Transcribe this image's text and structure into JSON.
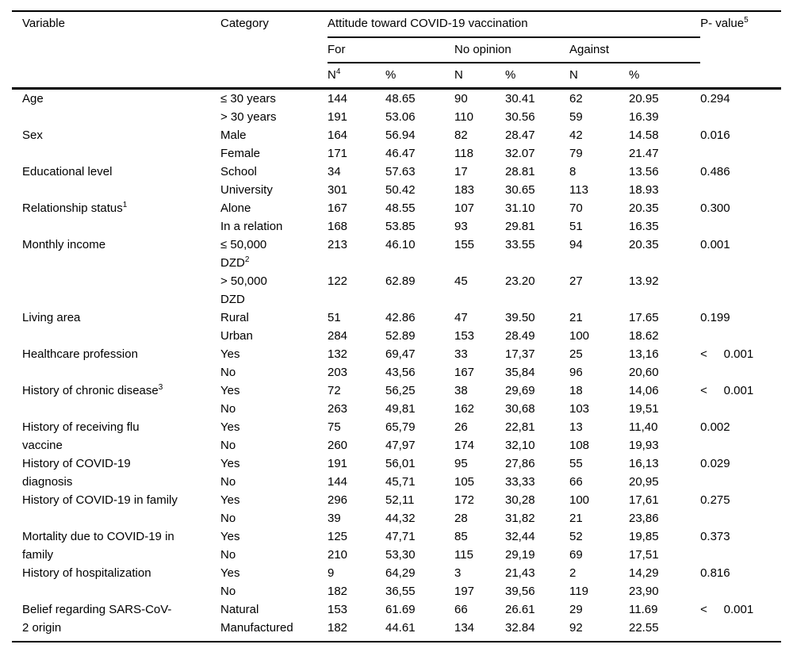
{
  "table": {
    "header": {
      "variable": "Variable",
      "category": "Category",
      "attitude_span": "Attitude toward COVID-19 vaccination",
      "pvalue": {
        "text": "P- value",
        "sup": "5"
      },
      "for_label": "For",
      "no_opinion_label": "No opinion",
      "against_label": "Against",
      "n_for": {
        "text": "N",
        "sup": "4"
      },
      "n_label": "N",
      "pct_label": "%"
    },
    "groups": [
      {
        "variable": {
          "text": "Age"
        },
        "pvalue": "0.294",
        "rows": [
          {
            "category": {
              "text": "≤ 30 years"
            },
            "values": [
              "144",
              "48.65",
              "90",
              "30.41",
              "62",
              "20.95"
            ]
          },
          {
            "category": {
              "text": "> 30 years"
            },
            "values": [
              "191",
              "53.06",
              "110",
              "30.56",
              "59",
              "16.39"
            ]
          }
        ]
      },
      {
        "variable": {
          "text": "Sex"
        },
        "pvalue": "0.016",
        "rows": [
          {
            "category": {
              "text": "Male"
            },
            "values": [
              "164",
              "56.94",
              "82",
              "28.47",
              "42",
              "14.58"
            ]
          },
          {
            "category": {
              "text": "Female"
            },
            "values": [
              "171",
              "46.47",
              "118",
              "32.07",
              "79",
              "21.47"
            ]
          }
        ]
      },
      {
        "variable": {
          "text": "Educational level"
        },
        "pvalue": "0.486",
        "rows": [
          {
            "category": {
              "text": "School"
            },
            "values": [
              "34",
              "57.63",
              "17",
              "28.81",
              "8",
              "13.56"
            ]
          },
          {
            "category": {
              "text": "University"
            },
            "values": [
              "301",
              "50.42",
              "183",
              "30.65",
              "113",
              "18.93"
            ]
          }
        ]
      },
      {
        "variable": {
          "text": "Relationship status",
          "sup": "1"
        },
        "pvalue": "0.300",
        "rows": [
          {
            "category": {
              "text": "Alone"
            },
            "values": [
              "167",
              "48.55",
              "107",
              "31.10",
              "70",
              "20.35"
            ]
          },
          {
            "category": {
              "text": "In a relation"
            },
            "values": [
              "168",
              "53.85",
              "93",
              "29.81",
              "51",
              "16.35"
            ]
          }
        ]
      },
      {
        "variable": {
          "text": "Monthly income"
        },
        "pvalue": "0.001",
        "rows": [
          {
            "category": {
              "text": "≤ 50,000\nDZD",
              "sup": "2"
            },
            "values": [
              "213",
              "46.10",
              "155",
              "33.55",
              "94",
              "20.35"
            ]
          },
          {
            "category": {
              "text": "> 50,000\nDZD"
            },
            "values": [
              "122",
              "62.89",
              "45",
              "23.20",
              "27",
              "13.92"
            ]
          }
        ]
      },
      {
        "variable": {
          "text": "Living area"
        },
        "pvalue": "0.199",
        "rows": [
          {
            "category": {
              "text": "Rural"
            },
            "values": [
              "51",
              "42.86",
              "47",
              "39.50",
              "21",
              "17.65"
            ]
          },
          {
            "category": {
              "text": "Urban"
            },
            "values": [
              "284",
              "52.89",
              "153",
              "28.49",
              "100",
              "18.62"
            ]
          }
        ]
      },
      {
        "variable": {
          "text": "Healthcare profession"
        },
        "pvalue": "<     0.001",
        "rows": [
          {
            "category": {
              "text": "Yes"
            },
            "values": [
              "132",
              "69,47",
              "33",
              "17,37",
              "25",
              "13,16"
            ]
          },
          {
            "category": {
              "text": "No"
            },
            "values": [
              "203",
              "43,56",
              "167",
              "35,84",
              "96",
              "20,60"
            ]
          }
        ]
      },
      {
        "variable": {
          "text": "History of chronic disease",
          "sup": "3"
        },
        "pvalue": "<     0.001",
        "rows": [
          {
            "category": {
              "text": "Yes"
            },
            "values": [
              "72",
              "56,25",
              "38",
              "29,69",
              "18",
              "14,06"
            ]
          },
          {
            "category": {
              "text": "No"
            },
            "values": [
              "263",
              "49,81",
              "162",
              "30,68",
              "103",
              "19,51"
            ]
          }
        ]
      },
      {
        "variable": {
          "text": "History of receiving flu\nvaccine"
        },
        "pvalue": "0.002",
        "rows": [
          {
            "category": {
              "text": "Yes"
            },
            "values": [
              "75",
              "65,79",
              "26",
              "22,81",
              "13",
              "11,40"
            ]
          },
          {
            "category": {
              "text": "No"
            },
            "values": [
              "260",
              "47,97",
              "174",
              "32,10",
              "108",
              "19,93"
            ]
          }
        ]
      },
      {
        "variable": {
          "text": "History of COVID-19\ndiagnosis"
        },
        "pvalue": "0.029",
        "rows": [
          {
            "category": {
              "text": "Yes"
            },
            "values": [
              "191",
              "56,01",
              "95",
              "27,86",
              "55",
              "16,13"
            ]
          },
          {
            "category": {
              "text": "No"
            },
            "values": [
              "144",
              "45,71",
              "105",
              "33,33",
              "66",
              "20,95"
            ]
          }
        ]
      },
      {
        "variable": {
          "text": "History of COVID-19 in family"
        },
        "pvalue": "0.275",
        "rows": [
          {
            "category": {
              "text": "Yes"
            },
            "values": [
              "296",
              "52,11",
              "172",
              "30,28",
              "100",
              "17,61"
            ]
          },
          {
            "category": {
              "text": "No"
            },
            "values": [
              "39",
              "44,32",
              "28",
              "31,82",
              "21",
              "23,86"
            ]
          }
        ]
      },
      {
        "variable": {
          "text": "Mortality due to COVID-19 in\nfamily"
        },
        "pvalue": "0.373",
        "rows": [
          {
            "category": {
              "text": "Yes"
            },
            "values": [
              "125",
              "47,71",
              "85",
              "32,44",
              "52",
              "19,85"
            ]
          },
          {
            "category": {
              "text": "No"
            },
            "values": [
              "210",
              "53,30",
              "115",
              "29,19",
              "69",
              "17,51"
            ]
          }
        ]
      },
      {
        "variable": {
          "text": "History of hospitalization"
        },
        "pvalue": "0.816",
        "rows": [
          {
            "category": {
              "text": "Yes"
            },
            "values": [
              "9",
              "64,29",
              "3",
              "21,43",
              "2",
              "14,29"
            ]
          },
          {
            "category": {
              "text": "No"
            },
            "values": [
              "182",
              "36,55",
              "197",
              "39,56",
              "119",
              "23,90"
            ]
          }
        ]
      },
      {
        "variable": {
          "text": "Belief regarding SARS-CoV-\n2 origin"
        },
        "pvalue": "<     0.001",
        "rows": [
          {
            "category": {
              "text": "Natural"
            },
            "values": [
              "153",
              "61.69",
              "66",
              "26.61",
              "29",
              "11.69"
            ]
          },
          {
            "category": {
              "text": "Manufactured"
            },
            "values": [
              "182",
              "44.61",
              "134",
              "32.84",
              "92",
              "22.55"
            ]
          }
        ]
      }
    ]
  }
}
